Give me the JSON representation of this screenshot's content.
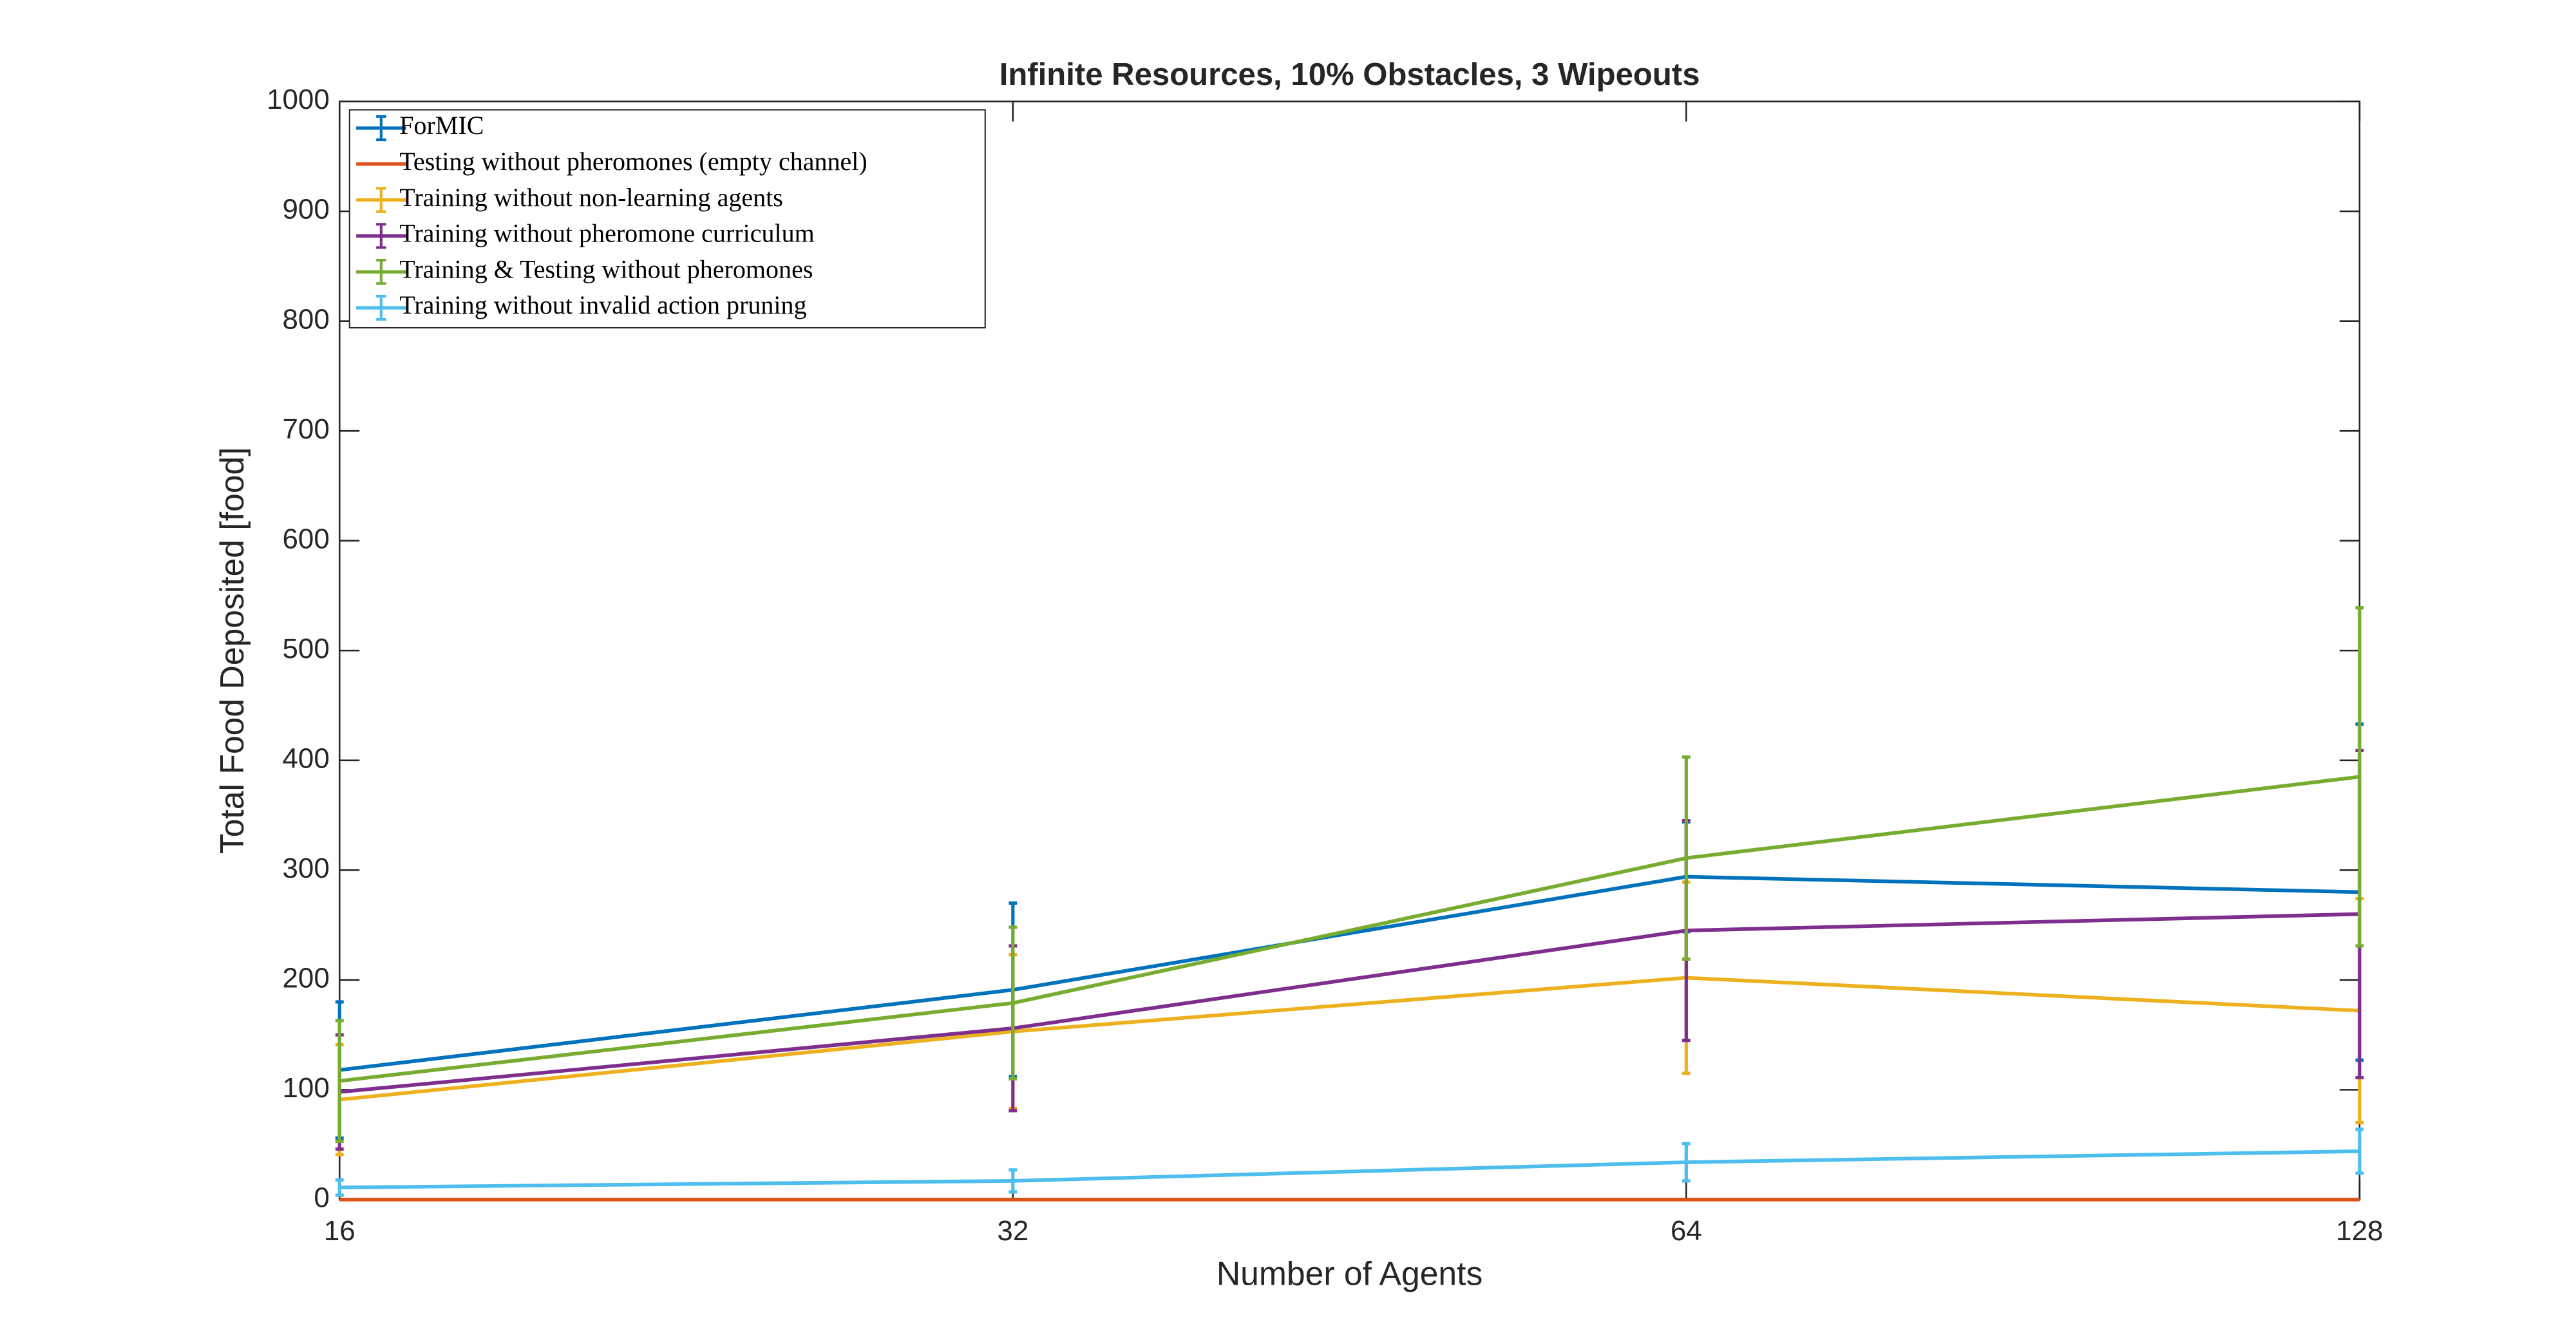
{
  "chart_data": {
    "type": "line",
    "title": "Infinite Resources, 10% Obstacles, 3 Wipeouts",
    "xlabel": "Number of Agents",
    "ylabel": "Total Food Deposited [food]",
    "xscale": "log",
    "x": [
      16,
      32,
      64,
      128
    ],
    "xlim": [
      16,
      128
    ],
    "xticks": [
      16,
      32,
      64,
      128
    ],
    "ylim": [
      0,
      1000
    ],
    "yticks": [
      0,
      100,
      200,
      300,
      400,
      500,
      600,
      700,
      800,
      900,
      1000
    ],
    "legend": "upper left",
    "series": [
      {
        "name": "ForMIC",
        "color": "#0072BD",
        "values": [
          118,
          191,
          294,
          280
        ],
        "errors": [
          62,
          79,
          50,
          153
        ]
      },
      {
        "name": "Testing without pheromones (empty channel)",
        "color": "#D95319",
        "values": [
          0,
          0,
          0,
          0
        ]
      },
      {
        "name": "Training without non-learning agents",
        "color": "#EDB120",
        "values": [
          91,
          153,
          202,
          172
        ],
        "errors": [
          50,
          70,
          87,
          102
        ]
      },
      {
        "name": "Training without pheromone curriculum",
        "color": "#7E2F8E",
        "values": [
          98,
          156,
          245,
          260
        ],
        "errors": [
          52,
          75,
          100,
          149
        ]
      },
      {
        "name": "Training & Testing without pheromones",
        "color": "#77AC30",
        "values": [
          108,
          179,
          311,
          385
        ],
        "errors": [
          55,
          69,
          92,
          154
        ]
      },
      {
        "name": "Training without invalid action pruning",
        "color": "#4DBEEE",
        "values": [
          11,
          17,
          34,
          44
        ],
        "errors": [
          7,
          10,
          17,
          20
        ]
      }
    ]
  }
}
